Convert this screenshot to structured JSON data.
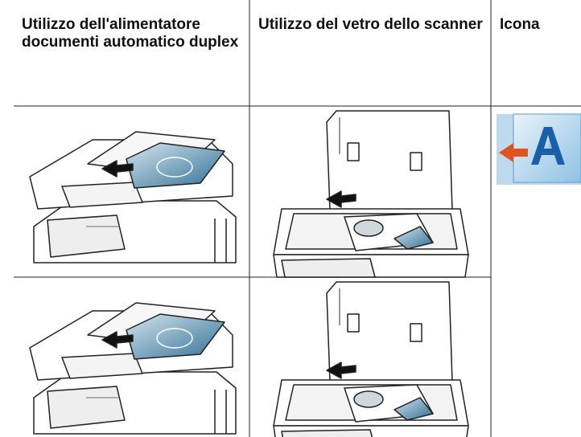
{
  "table": {
    "header": [
      "Utilizzo dell'alimentatore documenti automatico duplex",
      "Utilizzo del vetro dello scanner",
      "Icona"
    ]
  }
}
